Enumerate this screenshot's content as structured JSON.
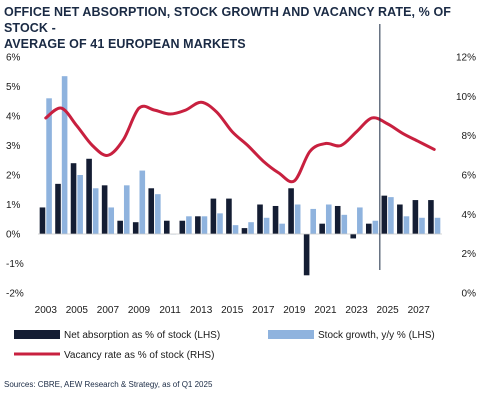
{
  "title_line1": "OFFICE NET ABSORPTION, STOCK GROWTH AND VACANCY RATE, % OF STOCK -",
  "title_line2": "AVERAGE OF 41 EUROPEAN MARKETS",
  "source": "Sources: CBRE, AEW Research & Strategy, as of Q1 2025",
  "colors": {
    "net_absorption": "#141d33",
    "stock_growth": "#8fb3de",
    "vacancy": "#c8203f",
    "forecast_line": "#1a2a44"
  },
  "chart_data": {
    "type": "bar",
    "title": "OFFICE NET ABSORPTION, STOCK GROWTH AND VACANCY RATE, % OF STOCK - AVERAGE OF 41 EUROPEAN MARKETS",
    "categories": [
      "2003",
      "2004",
      "2005",
      "2006",
      "2007",
      "2008",
      "2009",
      "2010",
      "2011",
      "2012",
      "2013",
      "2014",
      "2015",
      "2016",
      "2017",
      "2018",
      "2019",
      "2020",
      "2021",
      "2022",
      "2023",
      "2024",
      "2025",
      "2026",
      "2027",
      "2028"
    ],
    "x_tick_labels": [
      "2003",
      "2005",
      "2007",
      "2009",
      "2011",
      "2013",
      "2015",
      "2017",
      "2019",
      "2021",
      "2023",
      "2025",
      "2027"
    ],
    "y_left": {
      "ticks": [
        "6%",
        "5%",
        "4%",
        "3%",
        "2%",
        "1%",
        "0%",
        "-1%",
        "-2%"
      ],
      "ylim": [
        -2,
        6
      ]
    },
    "y_right": {
      "ticks": [
        "12%",
        "10%",
        "8%",
        "6%",
        "4%",
        "2%",
        "0%"
      ],
      "ylim": [
        0,
        12
      ]
    },
    "forecast_divider_after": "2024",
    "series": [
      {
        "name": "Net absorption as % of stock (LHS)",
        "type": "bar",
        "axis": "left",
        "values": [
          0.9,
          1.7,
          2.4,
          2.55,
          1.65,
          0.45,
          0.4,
          1.55,
          0.45,
          0.45,
          0.6,
          1.2,
          1.2,
          0.2,
          1.0,
          0.95,
          1.55,
          -1.4,
          0.35,
          0.95,
          -0.15,
          0.35,
          1.3,
          1.0,
          1.15,
          1.15
        ]
      },
      {
        "name": "Stock growth, y/y % (LHS)",
        "type": "bar",
        "axis": "left",
        "values": [
          4.6,
          5.35,
          2.0,
          1.55,
          0.9,
          1.65,
          2.15,
          1.35,
          0.0,
          0.6,
          0.6,
          0.7,
          0.3,
          0.4,
          0.55,
          0.35,
          1.0,
          0.85,
          1.0,
          0.65,
          0.9,
          0.45,
          1.25,
          0.6,
          0.55,
          0.55
        ]
      },
      {
        "name": "Vacancy rate as % of stock (RHS)",
        "type": "line",
        "axis": "right",
        "values": [
          8.9,
          9.4,
          8.5,
          7.5,
          7.0,
          7.8,
          9.4,
          9.3,
          9.1,
          9.3,
          9.7,
          9.2,
          8.2,
          7.5,
          6.7,
          6.1,
          5.7,
          7.2,
          7.6,
          7.5,
          8.2,
          8.9,
          8.6,
          8.1,
          7.7,
          7.3
        ]
      }
    ]
  }
}
